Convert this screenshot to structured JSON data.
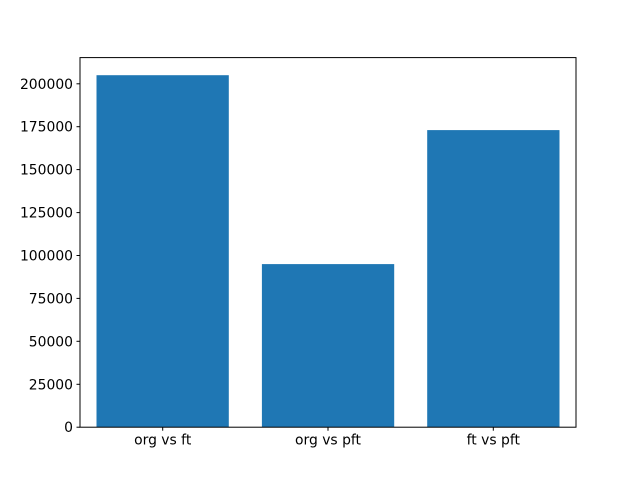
{
  "figure": {
    "background": "#ffffff"
  },
  "chart_data": {
    "type": "bar",
    "title": "",
    "xlabel": "",
    "ylabel": "",
    "categories": [
      "org vs ft",
      "org vs pft",
      "ft vs pft"
    ],
    "values": [
      205000,
      95000,
      173000
    ],
    "yticks": [
      0,
      25000,
      50000,
      75000,
      100000,
      125000,
      150000,
      175000,
      200000
    ],
    "ytick_labels": [
      "0",
      "25000",
      "50000",
      "75000",
      "100000",
      "125000",
      "150000",
      "175000",
      "200000"
    ],
    "ylim": [
      0,
      215250
    ],
    "grid": false,
    "legend": null,
    "bar_color": "#1f77b4",
    "frame_color": "#000000",
    "text_color": "#000000"
  }
}
